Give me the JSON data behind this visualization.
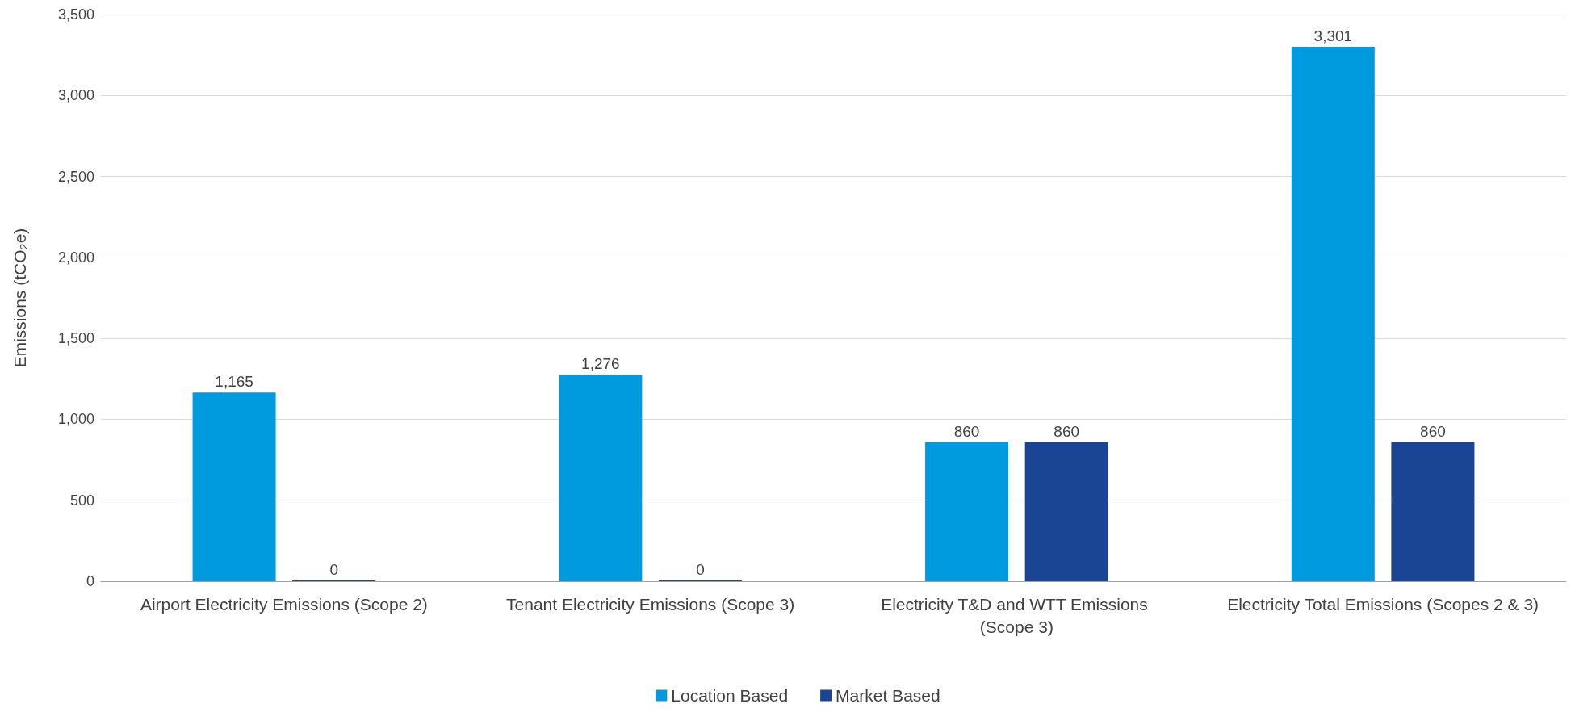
{
  "chart_data": {
    "type": "bar",
    "ylabel": "Emissions (tCO₂e)",
    "categories": [
      "Airport Electricity Emissions (Scope 2)",
      "Tenant Electricity Emissions (Scope 3)",
      "Electricity T&D and WTT Emissions (Scope 3)",
      "Electricity Total Emissions (Scopes 2 & 3)"
    ],
    "series": [
      {
        "name": "Location Based",
        "color": "#009ade",
        "values": [
          1165,
          1276,
          860,
          3301
        ],
        "value_labels": [
          "1,165",
          "1,276",
          "860",
          "3,301"
        ]
      },
      {
        "name": "Market Based",
        "color": "#1a4494",
        "values": [
          0,
          0,
          860,
          860
        ],
        "value_labels": [
          "0",
          "0",
          "860",
          "860"
        ]
      }
    ],
    "ylim": [
      0,
      3500
    ],
    "yticks": [
      0,
      500,
      {
        "value": 1000,
        "label": "1,000"
      },
      {
        "value": 1500,
        "label": "1,500"
      },
      {
        "value": 2000,
        "label": "2,000"
      },
      {
        "value": 2500,
        "label": "2,500"
      },
      {
        "value": 3000,
        "label": "3,000"
      },
      {
        "value": 3500,
        "label": "3,500"
      }
    ],
    "grid": "y",
    "legend": "bottom"
  }
}
